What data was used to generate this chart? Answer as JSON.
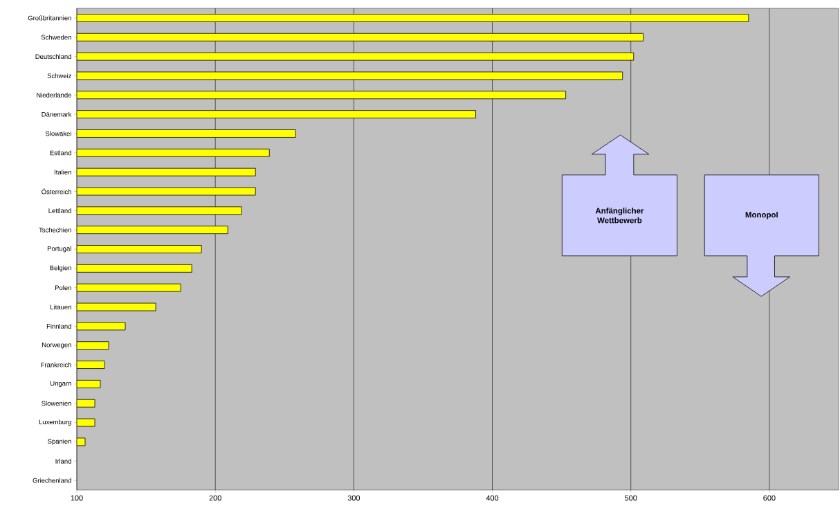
{
  "chart_data": {
    "type": "bar",
    "orientation": "horizontal",
    "categories": [
      "Großbritannien",
      "Schweden",
      "Deutschland",
      "Schweiz",
      "Niederlande",
      "Dänemark",
      "Slowakei",
      "Estland",
      "Italien",
      "Österreich",
      "Lettland",
      "Tschechien",
      "Portugal",
      "Belgien",
      "Polen",
      "Litauen",
      "Finnland",
      "Norwegen",
      "Frankreich",
      "Ungarn",
      "Slowenien",
      "Luxemburg",
      "Spanien",
      "Irland",
      "Griechenland"
    ],
    "values": [
      585,
      509,
      502,
      494,
      453,
      388,
      258,
      239,
      229,
      229,
      219,
      209,
      190,
      183,
      175,
      157,
      135,
      123,
      120,
      117,
      113,
      113,
      106,
      null,
      null
    ],
    "color": "#ffff00",
    "xlim": [
      100,
      650
    ],
    "xticks": [
      100,
      200,
      300,
      400,
      500,
      600
    ],
    "grid": "x",
    "annotations": [
      "Anfänglicher Wettbewerb",
      "Monopol"
    ]
  }
}
